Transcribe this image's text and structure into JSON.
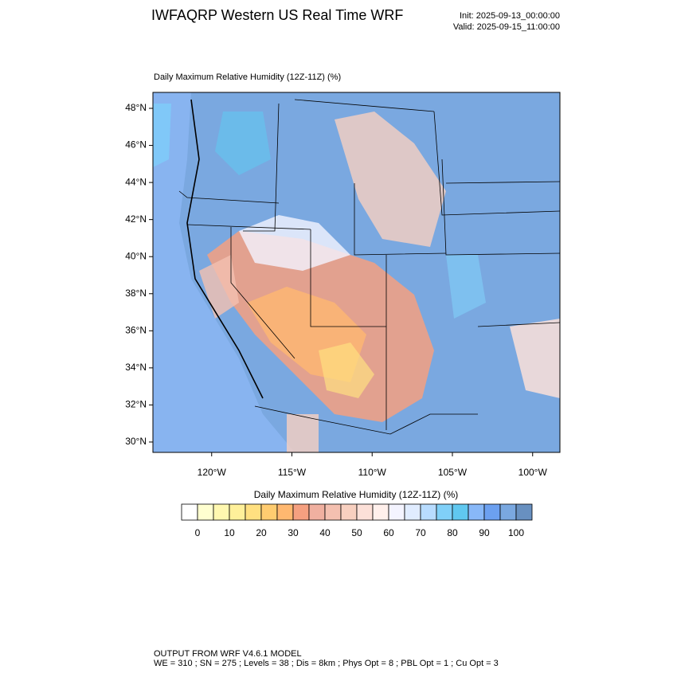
{
  "header": {
    "title": "IWFAQRP Western US Real Time WRF",
    "init": "Init: 2025-09-13_00:00:00",
    "valid": "Valid: 2025-09-15_11:00:00"
  },
  "map": {
    "title": "Daily Maximum Relative Humidity (12Z-11Z)   (%)",
    "xlim": [
      -123.66,
      -98.3
    ],
    "ylim": [
      29.44,
      48.86
    ],
    "lat_ticks": [
      {
        "value": 48,
        "label": "48°N"
      },
      {
        "value": 46,
        "label": "46°N"
      },
      {
        "value": 44,
        "label": "44°N"
      },
      {
        "value": 42,
        "label": "42°N"
      },
      {
        "value": 40,
        "label": "40°N"
      },
      {
        "value": 38,
        "label": "38°N"
      },
      {
        "value": 36,
        "label": "36°N"
      },
      {
        "value": 34,
        "label": "34°N"
      },
      {
        "value": 32,
        "label": "32°N"
      },
      {
        "value": 30,
        "label": "30°N"
      }
    ],
    "lon_ticks": [
      {
        "value": -120,
        "label": "120°W"
      },
      {
        "value": -115,
        "label": "115°W"
      },
      {
        "value": -110,
        "label": "110°W"
      },
      {
        "value": -105,
        "label": "105°W"
      },
      {
        "value": -100,
        "label": "100°W"
      }
    ]
  },
  "colorbar": {
    "title": "Daily Maximum Relative Humidity (12Z-11Z)  (%)",
    "labels": [
      0,
      10,
      20,
      30,
      40,
      50,
      60,
      70,
      80,
      90,
      100
    ],
    "colors": [
      "#ffffff",
      "#ffffd0",
      "#fff8b0",
      "#fff09a",
      "#ffe080",
      "#ffcc70",
      "#ffb870",
      "#f5a080",
      "#f0b0a0",
      "#f4c0b0",
      "#f8d0c0",
      "#fce0d8",
      "#fff0ec",
      "#f4f4ff",
      "#e0ecff",
      "#b8dcff",
      "#80d0f8",
      "#60c8f0",
      "#88b8f8",
      "#6ca0f0",
      "#7aa8e0",
      "#6890c0"
    ]
  },
  "footer": {
    "line1": "OUTPUT FROM WRF V4.6.1 MODEL",
    "line2": "WE = 310 ; SN = 275 ; Levels = 38 ; Dis = 8km ; Phys Opt = 8 ; PBL Opt = 1 ; Cu Opt = 3"
  }
}
